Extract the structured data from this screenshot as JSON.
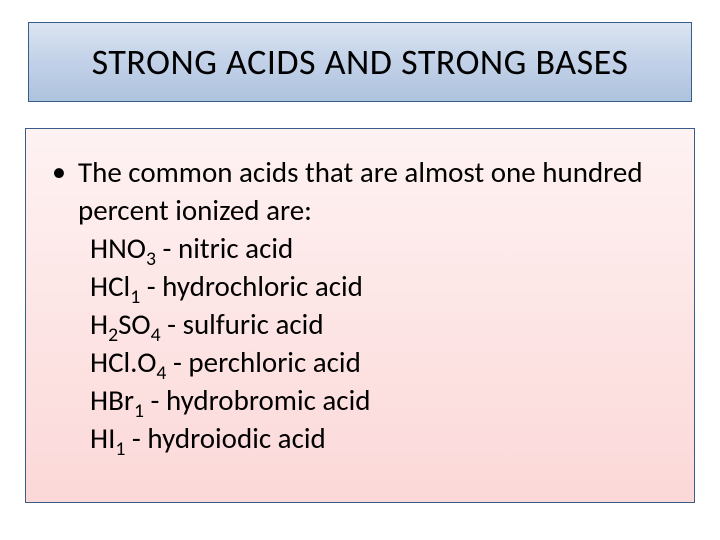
{
  "slide": {
    "title": "STRONG ACIDS AND STRONG BASES",
    "intro": "The common acids that are almost one hundred percent ionized are:",
    "acids": [
      {
        "formula_pre": "HNO",
        "sub": "3",
        "formula_post": "",
        "name": "nitric acid"
      },
      {
        "formula_pre": "HCl",
        "sub": "1",
        "formula_post": "",
        "name": "hydrochloric acid"
      },
      {
        "formula_pre": "H",
        "sub": "2",
        "formula_mid": "SO",
        "sub2": "4",
        "formula_post": "",
        "name": "sulfuric acid"
      },
      {
        "formula_pre": "HCl.O",
        "sub": "4",
        "formula_post": "",
        "name": "perchloric acid"
      },
      {
        "formula_pre": "HBr",
        "sub": "1",
        "formula_post": "",
        "name": "hydrobromic acid"
      },
      {
        "formula_pre": "HI",
        "sub": "1",
        "formula_post": "",
        "name": "hydroiodic acid"
      }
    ]
  },
  "style": {
    "title_bg_gradient": [
      "#dbe5f1",
      "#c2d1e8",
      "#aec3de"
    ],
    "title_border": "#385d8a",
    "content_bg_gradient": [
      "#fef2f2",
      "#fde5e5",
      "#fcd8d8"
    ],
    "content_border": "#385d8a",
    "title_fontsize": 36,
    "body_fontsize": 29,
    "line_height": 38,
    "text_color": "#000000",
    "slide_width": 720,
    "slide_height": 540
  }
}
